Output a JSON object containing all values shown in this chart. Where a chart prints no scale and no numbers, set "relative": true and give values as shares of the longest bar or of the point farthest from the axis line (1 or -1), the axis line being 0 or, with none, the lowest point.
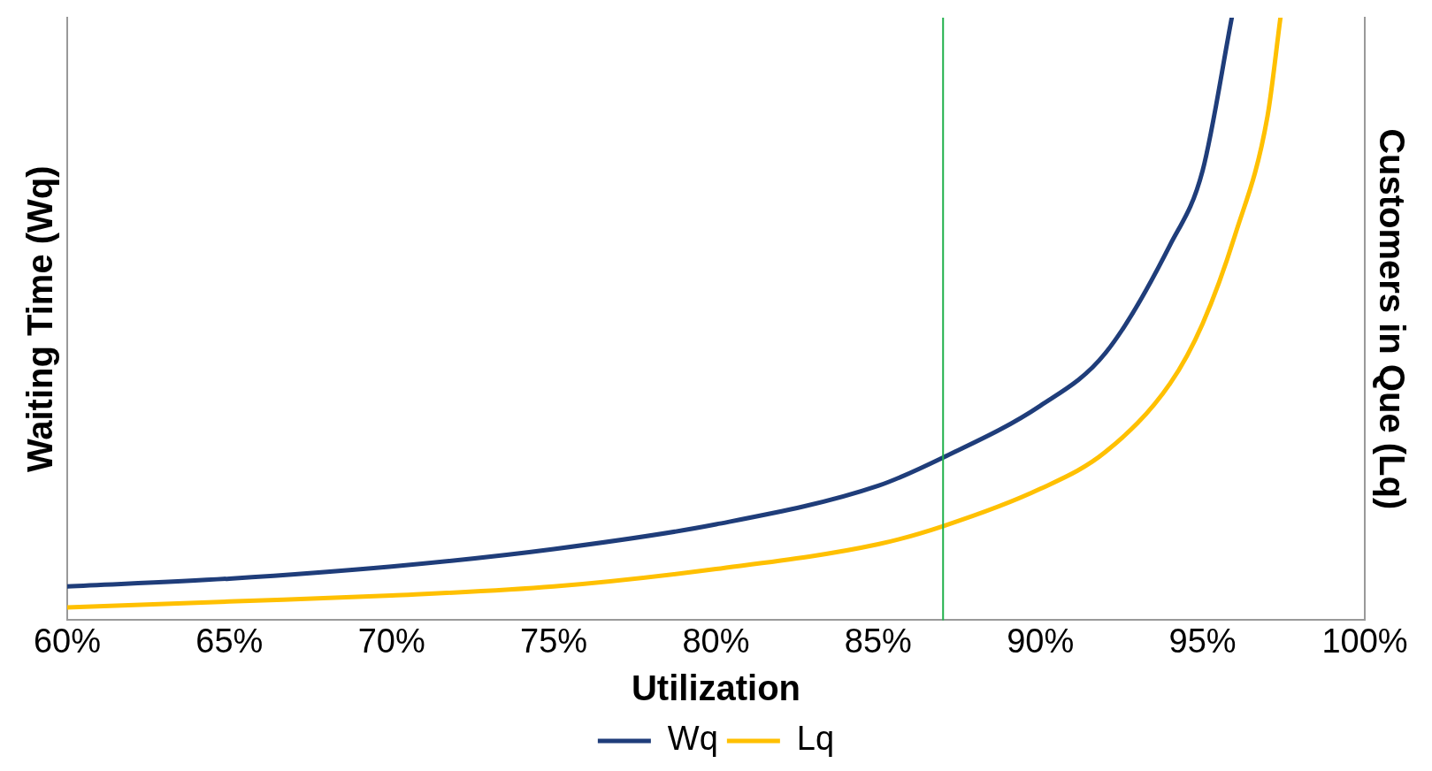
{
  "chart_data": {
    "type": "line",
    "xlabel": "Utilization",
    "ylabel": "Waiting Time (Wq)",
    "y2label": "Customers in Que (Lq)",
    "relative": true,
    "xlim": [
      60,
      100
    ],
    "xticks": [
      {
        "value": 60,
        "label": "60%"
      },
      {
        "value": 65,
        "label": "65%"
      },
      {
        "value": 70,
        "label": "70%"
      },
      {
        "value": 75,
        "label": "75%"
      },
      {
        "value": 80,
        "label": "80%"
      },
      {
        "value": 85,
        "label": "85%"
      },
      {
        "value": 90,
        "label": "90%"
      },
      {
        "value": 95,
        "label": "95%"
      },
      {
        "value": 100,
        "label": "100%"
      }
    ],
    "series": [
      {
        "name": "Wq",
        "color": "#1f3d7a",
        "x": [
          60,
          65,
          70,
          75,
          80,
          85,
          87,
          90,
          92,
          94,
          95,
          95.9
        ],
        "values": [
          0.056,
          0.069,
          0.089,
          0.118,
          0.159,
          0.223,
          0.27,
          0.356,
          0.443,
          0.623,
          0.746,
          1.0
        ]
      },
      {
        "name": "Lq",
        "color": "#ffc000",
        "x": [
          60,
          65,
          70,
          75,
          80,
          85,
          87,
          90,
          92,
          94,
          95,
          96,
          97,
          97.4
        ],
        "values": [
          0.021,
          0.031,
          0.041,
          0.056,
          0.085,
          0.126,
          0.156,
          0.218,
          0.279,
          0.393,
          0.492,
          0.639,
          0.836,
          1.0
        ]
      }
    ],
    "ref_lines": [
      {
        "axis": "x",
        "value": 87,
        "color": "#22b14c"
      }
    ],
    "legend": "bottom",
    "grid": false,
    "marker": "none",
    "line_style": "solid"
  }
}
